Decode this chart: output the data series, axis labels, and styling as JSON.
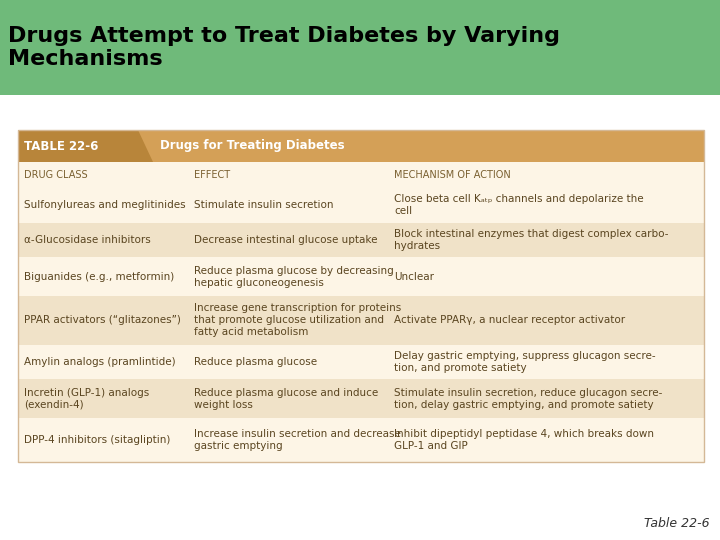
{
  "title": "Drugs Attempt to Treat Diabetes by Varying\nMechanisms",
  "title_bg": "#6fba7a",
  "title_color": "#000000",
  "table_title": "TABLE 22-6",
  "table_subtitle": "Drugs for Treating Diabetes",
  "table_header_bg": "#d4a057",
  "table_title_bg": "#b8853a",
  "table_body_bg": "#fdf5e6",
  "table_alt_bg": "#f0e2c8",
  "col_headers": [
    "DRUG CLASS",
    "EFFECT",
    "MECHANISM OF ACTION"
  ],
  "rows": [
    [
      "Sulfonylureas and meglitinides",
      "Stimulate insulin secretion",
      "Close beta cell Kₐₜₚ channels and depolarize the\ncell"
    ],
    [
      "α-Glucosidase inhibitors",
      "Decrease intestinal glucose uptake",
      "Block intestinal enzymes that digest complex carbo-\nhydrates"
    ],
    [
      "Biguanides (e.g., metformin)",
      "Reduce plasma glucose by decreasing\nhepatic gluconeogenesis",
      "Unclear"
    ],
    [
      "PPAR activators (“glitazones”)",
      "Increase gene transcription for proteins\nthat promote glucose utilization and\nfatty acid metabolism",
      "Activate PPARγ, a nuclear receptor activator"
    ],
    [
      "Amylin analogs (pramlintide)",
      "Reduce plasma glucose",
      "Delay gastric emptying, suppress glucagon secre-\ntion, and promote satiety"
    ],
    [
      "Incretin (GLP-1) analogs\n(exendin-4)",
      "Reduce plasma glucose and induce\nweight loss",
      "Stimulate insulin secretion, reduce glucagon secre-\ntion, delay gastric emptying, and promote satiety"
    ],
    [
      "DPP-4 inhibitors (sitagliptin)",
      "Increase insulin secretion and decrease\ngastric emptying",
      "Inhibit dipeptidyl peptidase 4, which breaks down\nGLP-1 and GIP"
    ]
  ],
  "footer": "Table 22-6",
  "bg_color": "#ffffff",
  "body_text_color": "#5a4520",
  "col_header_color": "#7a6030",
  "title_fontsize": 16,
  "table_fontsize": 7.5,
  "col_hdr_fontsize": 7.0
}
